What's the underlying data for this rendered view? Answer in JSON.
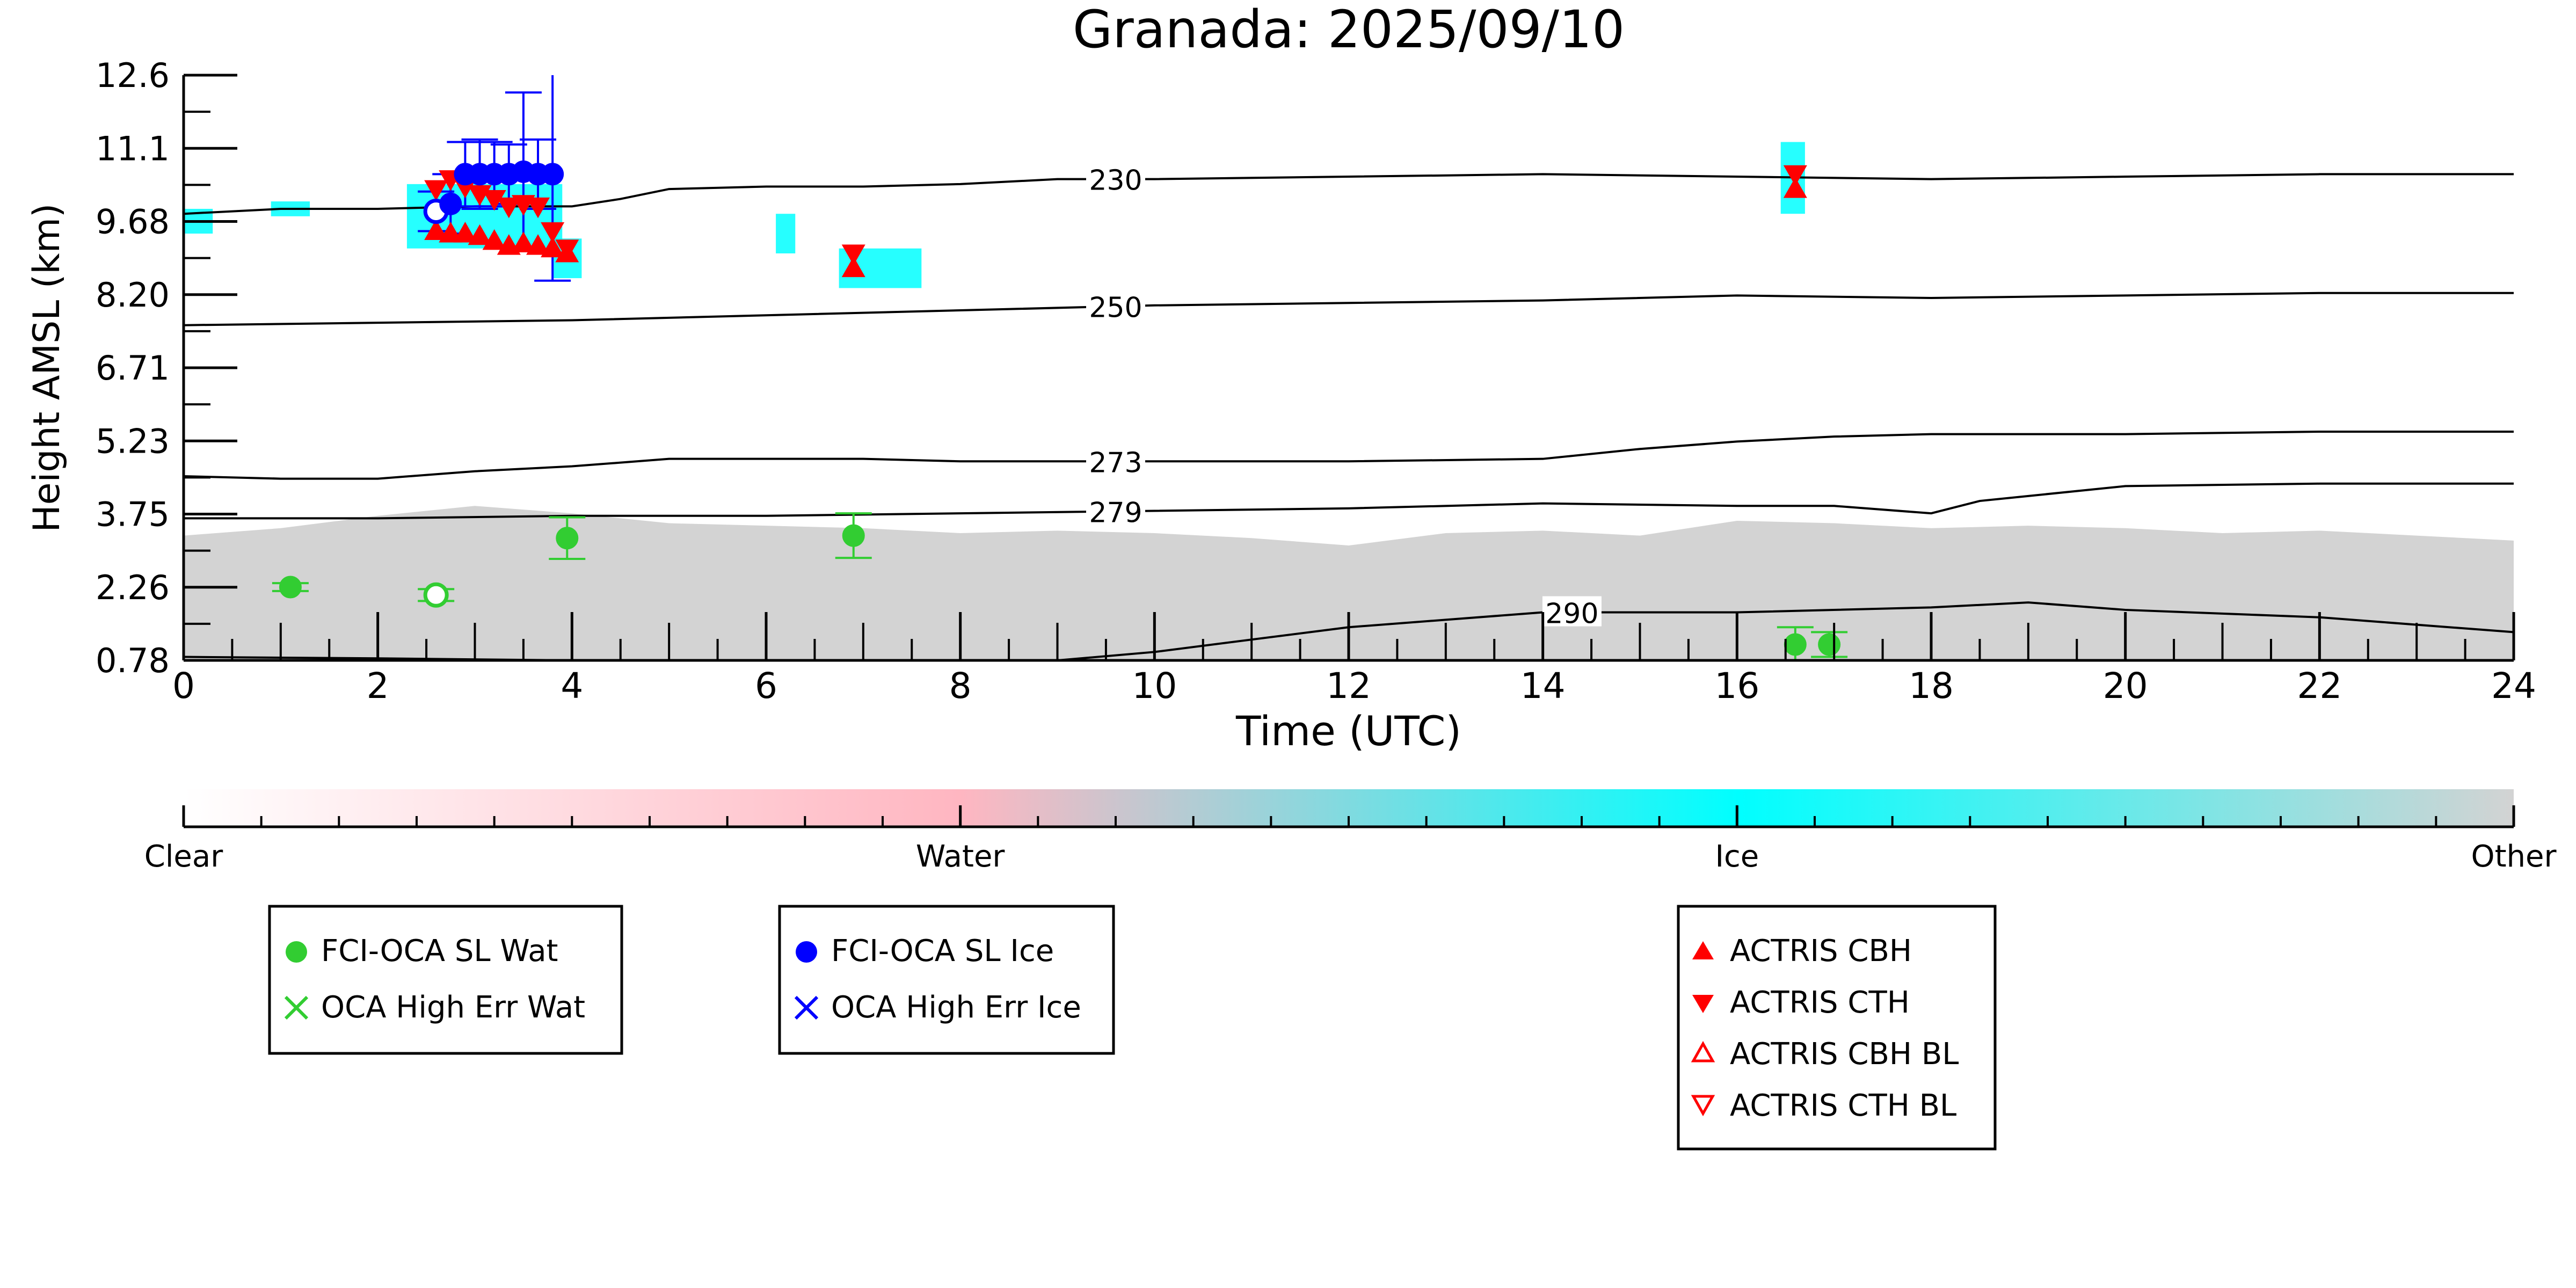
{
  "chart_data": {
    "type": "scatter",
    "title": "Granada: 2025/09/10",
    "xlabel": "Time (UTC)",
    "ylabel": "Height AMSL (km)",
    "xlim": [
      0,
      24
    ],
    "ylim": [
      0.78,
      12.6
    ],
    "x_ticks": [
      "0",
      "2",
      "4",
      "6",
      "8",
      "10",
      "12",
      "14",
      "16",
      "18",
      "20",
      "22",
      "24"
    ],
    "y_ticks": [
      "0.78",
      "2.26",
      "3.75",
      "5.23",
      "6.71",
      "8.20",
      "9.68",
      "11.1",
      "12.6"
    ],
    "colorbar": {
      "labels": [
        "Clear",
        "Water",
        "Ice",
        "Other"
      ],
      "colors": [
        "#ffffff",
        "#ffb6c1",
        "#00ffff",
        "#d3d3d3"
      ]
    },
    "legend": {
      "water": [
        "FCI-OCA SL Wat",
        "OCA High Err Wat"
      ],
      "ice": [
        "FCI-OCA SL Ice",
        "OCA High Err Ice"
      ],
      "actris": [
        "ACTRIS CBH",
        "ACTRIS CTH",
        "ACTRIS CBH BL",
        "ACTRIS CTH BL"
      ]
    },
    "colors": {
      "water": "#32cd32",
      "ice": "#0000ff",
      "actris": "#ff0000",
      "cloud_ice": "#00ffff",
      "cloud_other": "#d3d3d3",
      "contour": "#000000"
    },
    "isotherms": [
      {
        "label": "230",
        "x": [
          0,
          1,
          2,
          3,
          4,
          4.5,
          5,
          6,
          7,
          8,
          9,
          10,
          12,
          14,
          16,
          18,
          20,
          22,
          24
        ],
        "y": [
          9.8,
          9.9,
          9.9,
          9.95,
          9.95,
          10.1,
          10.3,
          10.35,
          10.35,
          10.4,
          10.5,
          10.5,
          10.55,
          10.6,
          10.55,
          10.5,
          10.55,
          10.6,
          10.6
        ]
      },
      {
        "label": "250",
        "x": [
          0,
          2,
          4,
          6,
          8,
          10,
          12,
          14,
          16,
          18,
          20,
          22,
          24
        ],
        "y": [
          7.55,
          7.6,
          7.65,
          7.75,
          7.85,
          7.95,
          8.0,
          8.05,
          8.15,
          8.1,
          8.15,
          8.2,
          8.2
        ]
      },
      {
        "label": "273",
        "x": [
          0,
          1,
          2,
          3,
          4,
          5,
          6,
          7,
          8,
          9,
          10,
          12,
          14,
          15,
          16,
          17,
          18,
          20,
          22,
          24
        ],
        "y": [
          4.5,
          4.45,
          4.45,
          4.6,
          4.7,
          4.85,
          4.85,
          4.85,
          4.8,
          4.8,
          4.8,
          4.8,
          4.85,
          5.05,
          5.2,
          5.3,
          5.35,
          5.35,
          5.4,
          5.4
        ]
      },
      {
        "label": "279",
        "x": [
          0,
          2,
          4,
          6,
          8,
          10,
          12,
          14,
          16,
          17,
          18,
          18.5,
          19,
          20,
          22,
          24
        ],
        "y": [
          3.65,
          3.65,
          3.7,
          3.7,
          3.75,
          3.8,
          3.85,
          3.95,
          3.9,
          3.9,
          3.75,
          4.0,
          4.1,
          4.3,
          4.35,
          4.35
        ]
      },
      {
        "label": "290",
        "x": [
          0,
          2,
          4,
          6,
          8,
          9,
          10,
          12,
          14,
          16,
          18,
          19,
          20,
          22,
          24
        ],
        "y": [
          0.85,
          0.82,
          0.78,
          0.75,
          0.7,
          0.78,
          0.95,
          1.45,
          1.75,
          1.75,
          1.85,
          1.95,
          1.8,
          1.65,
          1.35
        ]
      }
    ],
    "oca_water": [
      {
        "x": 1.1,
        "y": 2.26,
        "err": 0.08,
        "filled": true
      },
      {
        "x": 2.6,
        "y": 2.1,
        "err": 0.12,
        "filled": false
      },
      {
        "x": 3.95,
        "y": 3.25,
        "err": 0.42,
        "filled": true
      },
      {
        "x": 6.9,
        "y": 3.3,
        "err": 0.45,
        "filled": true
      },
      {
        "x": 16.6,
        "y": 1.1,
        "err": 0.35,
        "filled": true
      },
      {
        "x": 16.95,
        "y": 1.1,
        "err": 0.25,
        "filled": true
      }
    ],
    "oca_ice": [
      {
        "x": 2.6,
        "y": 9.85,
        "err": 0.4,
        "filled": false
      },
      {
        "x": 2.75,
        "y": 10.0,
        "err": 0.6,
        "filled": true
      },
      {
        "x": 2.9,
        "y": 10.6,
        "err": 0.65,
        "filled": true
      },
      {
        "x": 3.05,
        "y": 10.6,
        "err": 0.7,
        "filled": true
      },
      {
        "x": 3.2,
        "y": 10.6,
        "err": 0.65,
        "filled": true
      },
      {
        "x": 3.35,
        "y": 10.6,
        "err": 0.6,
        "filled": true
      },
      {
        "x": 3.5,
        "y": 10.65,
        "err": 1.6,
        "filled": true
      },
      {
        "x": 3.65,
        "y": 10.6,
        "err": 0.7,
        "filled": true
      },
      {
        "x": 3.8,
        "y": 10.6,
        "err": 2.15,
        "filled": true
      }
    ],
    "actris_cth": [
      {
        "x": 2.6,
        "y": 10.3
      },
      {
        "x": 2.75,
        "y": 10.5
      },
      {
        "x": 2.9,
        "y": 10.35
      },
      {
        "x": 3.05,
        "y": 10.2
      },
      {
        "x": 3.2,
        "y": 10.1
      },
      {
        "x": 3.35,
        "y": 9.95
      },
      {
        "x": 3.5,
        "y": 10.0
      },
      {
        "x": 3.65,
        "y": 9.95
      },
      {
        "x": 3.8,
        "y": 9.45
      },
      {
        "x": 3.95,
        "y": 9.1
      },
      {
        "x": 6.9,
        "y": 9.0
      },
      {
        "x": 16.6,
        "y": 10.6
      }
    ],
    "actris_cbh": [
      {
        "x": 2.6,
        "y": 9.45
      },
      {
        "x": 2.75,
        "y": 9.4
      },
      {
        "x": 2.9,
        "y": 9.4
      },
      {
        "x": 3.05,
        "y": 9.35
      },
      {
        "x": 3.2,
        "y": 9.25
      },
      {
        "x": 3.35,
        "y": 9.15
      },
      {
        "x": 3.5,
        "y": 9.2
      },
      {
        "x": 3.65,
        "y": 9.15
      },
      {
        "x": 3.8,
        "y": 9.1
      },
      {
        "x": 3.95,
        "y": 9.0
      },
      {
        "x": 6.9,
        "y": 8.7
      },
      {
        "x": 16.6,
        "y": 10.3
      }
    ],
    "ice_patches": [
      {
        "x0": 0.0,
        "x1": 0.3,
        "y0": 9.4,
        "y1": 9.9
      },
      {
        "x0": 0.9,
        "x1": 1.3,
        "y0": 9.75,
        "y1": 10.05
      },
      {
        "x0": 2.3,
        "x1": 3.9,
        "y0": 9.1,
        "y1": 10.4
      },
      {
        "x0": 3.8,
        "x1": 4.1,
        "y0": 8.5,
        "y1": 9.3
      },
      {
        "x0": 6.1,
        "x1": 6.3,
        "y0": 9.0,
        "y1": 9.8
      },
      {
        "x0": 6.75,
        "x1": 7.6,
        "y0": 8.3,
        "y1": 9.1
      },
      {
        "x0": 16.45,
        "x1": 16.7,
        "y0": 9.8,
        "y1": 11.25
      }
    ],
    "other_band": {
      "x": [
        0,
        1,
        2,
        3,
        4,
        5,
        6,
        7,
        8,
        9,
        10,
        11,
        12,
        13,
        14,
        15,
        16,
        17,
        18,
        19,
        20,
        21,
        22,
        23,
        24
      ],
      "top": [
        3.3,
        3.45,
        3.7,
        3.9,
        3.75,
        3.55,
        3.5,
        3.45,
        3.35,
        3.4,
        3.35,
        3.25,
        3.1,
        3.35,
        3.4,
        3.3,
        3.6,
        3.55,
        3.45,
        3.5,
        3.45,
        3.35,
        3.4,
        3.3,
        3.2
      ]
    }
  }
}
